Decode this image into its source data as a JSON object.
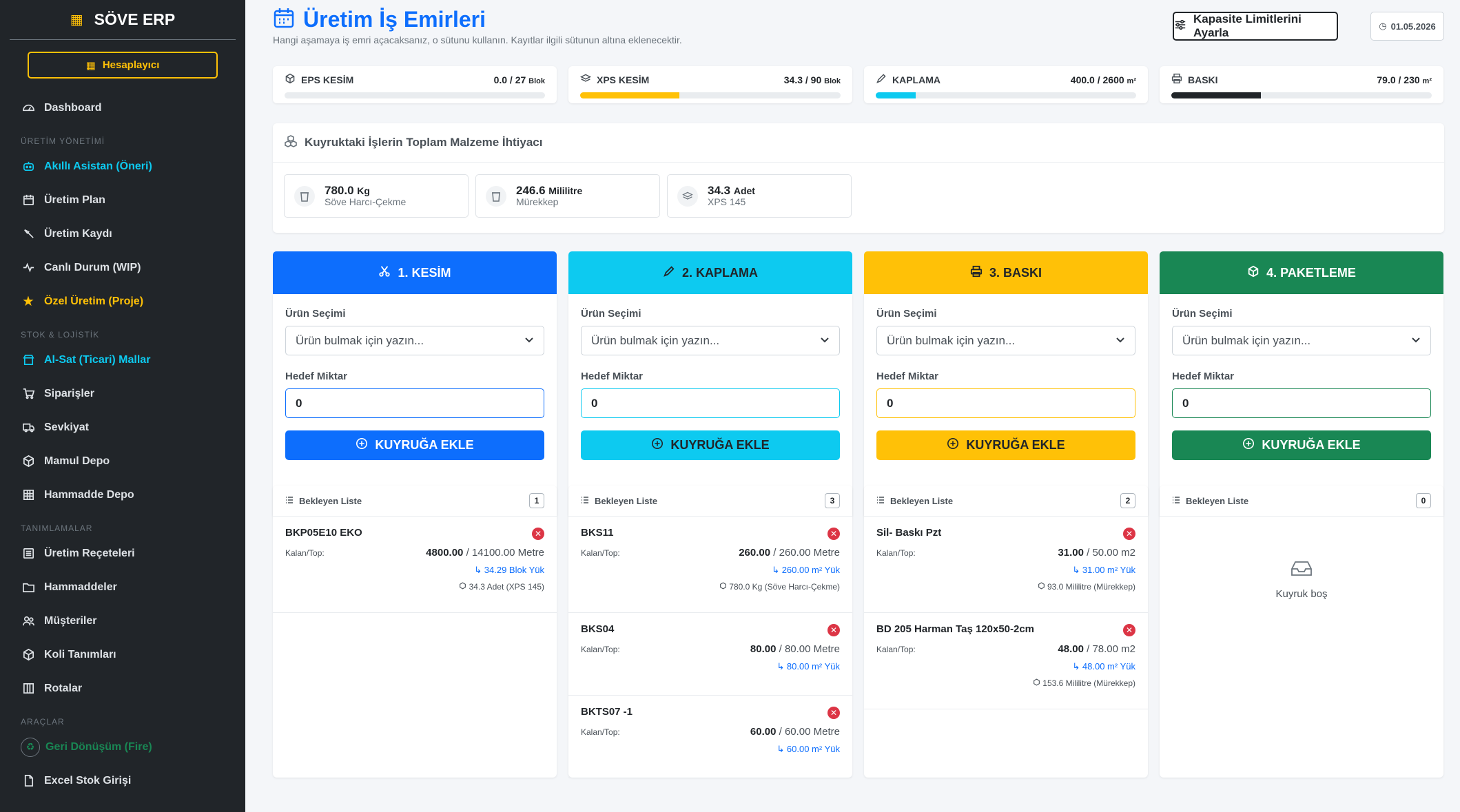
{
  "sidebar": {
    "brand": "SÖVE ERP",
    "calc_button": "Hesaplayıcı",
    "items": {
      "dashboard": "Dashboard",
      "h_uretim": "ÜRETİM YÖNETİMİ",
      "asistan": "Akıllı Asistan (Öneri)",
      "plan": "Üretim Plan",
      "kayit": "Üretim Kaydı",
      "canli": "Canlı Durum (WIP)",
      "ozel": "Özel Üretim (Proje)",
      "h_stok": "STOK & LOJİSTİK",
      "alsat": "Al-Sat (Ticari) Mallar",
      "siparis": "Siparişler",
      "sevkiyat": "Sevkiyat",
      "mamul": "Mamul Depo",
      "hammadde_depo": "Hammadde Depo",
      "h_tanim": "TANIMLAMALAR",
      "recete": "Üretim Reçeteleri",
      "hammaddeler": "Hammaddeler",
      "musteriler": "Müşteriler",
      "koli": "Koli Tanımları",
      "rotalar": "Rotalar",
      "h_arac": "ARAÇLAR",
      "geri": "Geri Dönüşüm (Fire)",
      "excel": "Excel Stok Girişi"
    }
  },
  "header": {
    "title": "Üretim İş Emirleri",
    "subtitle": "Hangi aşamaya iş emri açacaksanız, o sütunu kullanın. Kayıtlar ilgili sütunun altına eklenecektir.",
    "capacity_button": "Kapasite Limitlerini Ayarla",
    "date": "01.05.2026"
  },
  "capacity": [
    {
      "label": "EPS KESİM",
      "value": "0.0 / 27",
      "unit": "Blok",
      "fraction": 0.0,
      "color": "#0d6efd"
    },
    {
      "label": "XPS KESİM",
      "value": "34.3 / 90",
      "unit": "Blok",
      "fraction": 0.381,
      "color": "#ffc107"
    },
    {
      "label": "KAPLAMA",
      "value": "400.0 / 2600",
      "unit": "m²",
      "fraction": 0.154,
      "color": "#0dcaf0"
    },
    {
      "label": "BASKI",
      "value": "79.0 / 230",
      "unit": "m²",
      "fraction": 0.343,
      "color": "#212529"
    }
  ],
  "materials": {
    "title": "Kuyruktaki İşlerin Toplam Malzeme İhtiyacı",
    "items": [
      {
        "value": "780.0",
        "unit": "Kg",
        "name": "Söve Harcı-Çekme"
      },
      {
        "value": "246.6",
        "unit": "Mililitre",
        "name": "Mürekkep"
      },
      {
        "value": "34.3",
        "unit": "Adet",
        "name": "XPS 145"
      }
    ]
  },
  "form": {
    "product_label": "Ürün Seçimi",
    "product_placeholder": "Ürün bulmak için yazın...",
    "qty_label": "Hedef Miktar",
    "qty_value": "0",
    "add_button": "KUYRUĞA EKLE",
    "queue_title": "Bekleyen Liste",
    "remaining_label": "Kalan/Top:",
    "empty": "Kuyruk boş"
  },
  "columns": [
    {
      "title": "1. KESİM",
      "color": "#0d6efd",
      "count": "1",
      "jobs": [
        {
          "name": "BKP05E10 EKO",
          "remaining": "4800.00",
          "total": "/ 14100.00 Metre",
          "load": "34.29 Blok Yük",
          "material": "34.3 Adet (XPS 145)"
        }
      ]
    },
    {
      "title": "2. KAPLAMA",
      "color": "#0dcaf0",
      "count": "3",
      "jobs": [
        {
          "name": "BKS11",
          "remaining": "260.00",
          "total": "/ 260.00 Metre",
          "load": "260.00 m² Yük",
          "material": "780.0 Kg (Söve Harcı-Çekme)"
        },
        {
          "name": "BKS04",
          "remaining": "80.00",
          "total": "/ 80.00 Metre",
          "load": "80.00 m² Yük",
          "material": ""
        },
        {
          "name": "BKTS07 -1",
          "remaining": "60.00",
          "total": "/ 60.00 Metre",
          "load": "60.00 m² Yük",
          "material": ""
        }
      ]
    },
    {
      "title": "3. BASKI",
      "color": "#ffc107",
      "count": "2",
      "jobs": [
        {
          "name": "Sil- Baskı Pzt",
          "remaining": "31.00",
          "total": "/ 50.00 m2",
          "load": "31.00 m² Yük",
          "material": "93.0 Mililitre (Mürekkep)"
        },
        {
          "name": "BD 205 Harman Taş 120x50-2cm",
          "remaining": "48.00",
          "total": "/ 78.00 m2",
          "load": "48.00 m² Yük",
          "material": "153.6 Mililitre (Mürekkep)"
        }
      ]
    },
    {
      "title": "4. PAKETLEME",
      "color": "#198754",
      "count": "0",
      "jobs": []
    }
  ]
}
